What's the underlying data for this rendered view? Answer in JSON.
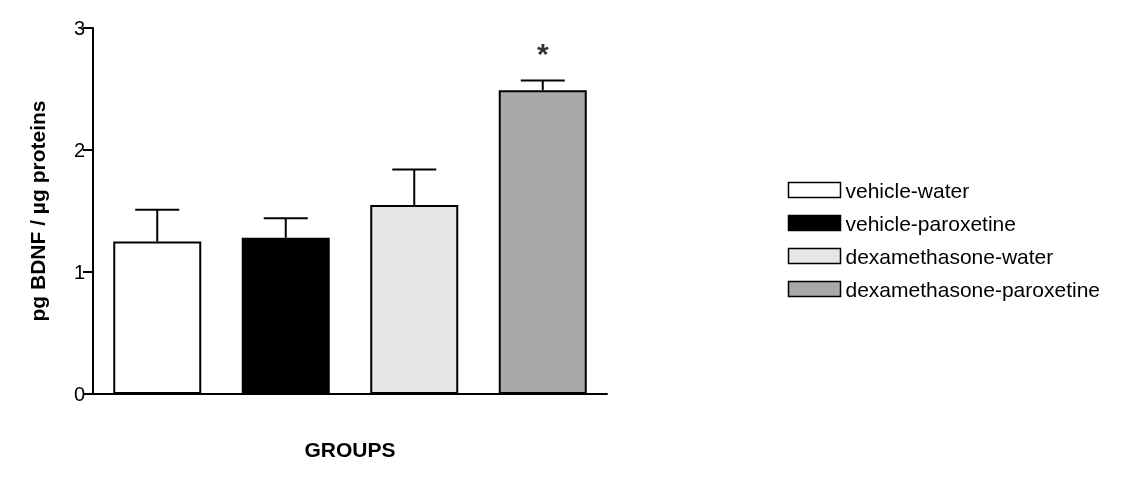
{
  "chart_data": {
    "type": "bar",
    "ylabel": "pg BDNF / µg proteins",
    "xlabel": "GROUPS",
    "categories": [
      null,
      null,
      null,
      null
    ],
    "series": [
      {
        "name": "vehicle-water",
        "color": "#ffffff",
        "values": [
          1.25,
          null,
          null,
          null
        ],
        "errors": [
          [
            1.25,
            1.51
          ],
          null,
          null,
          null
        ]
      },
      {
        "name": "vehicle-paroxetine",
        "color": "#000000",
        "values": [
          null,
          1.28,
          null,
          null
        ],
        "errors": [
          null,
          [
            1.28,
            1.44
          ],
          null,
          null
        ]
      },
      {
        "name": "dexamethasone-water",
        "color": "#e6e6e6",
        "values": [
          null,
          null,
          1.55,
          null
        ],
        "errors": [
          null,
          null,
          [
            1.55,
            1.84
          ],
          null
        ]
      },
      {
        "name": "dexamethasone-paroxetine",
        "color": "#a9a9a9",
        "values": [
          null,
          null,
          null,
          2.49
        ],
        "errors": [
          null,
          null,
          null,
          [
            2.49,
            2.57
          ]
        ]
      }
    ],
    "ylim": [
      0,
      3
    ],
    "yticks": [
      0,
      1,
      2,
      3
    ],
    "grid": false,
    "legend": "right",
    "annotations": [
      "*"
    ]
  }
}
